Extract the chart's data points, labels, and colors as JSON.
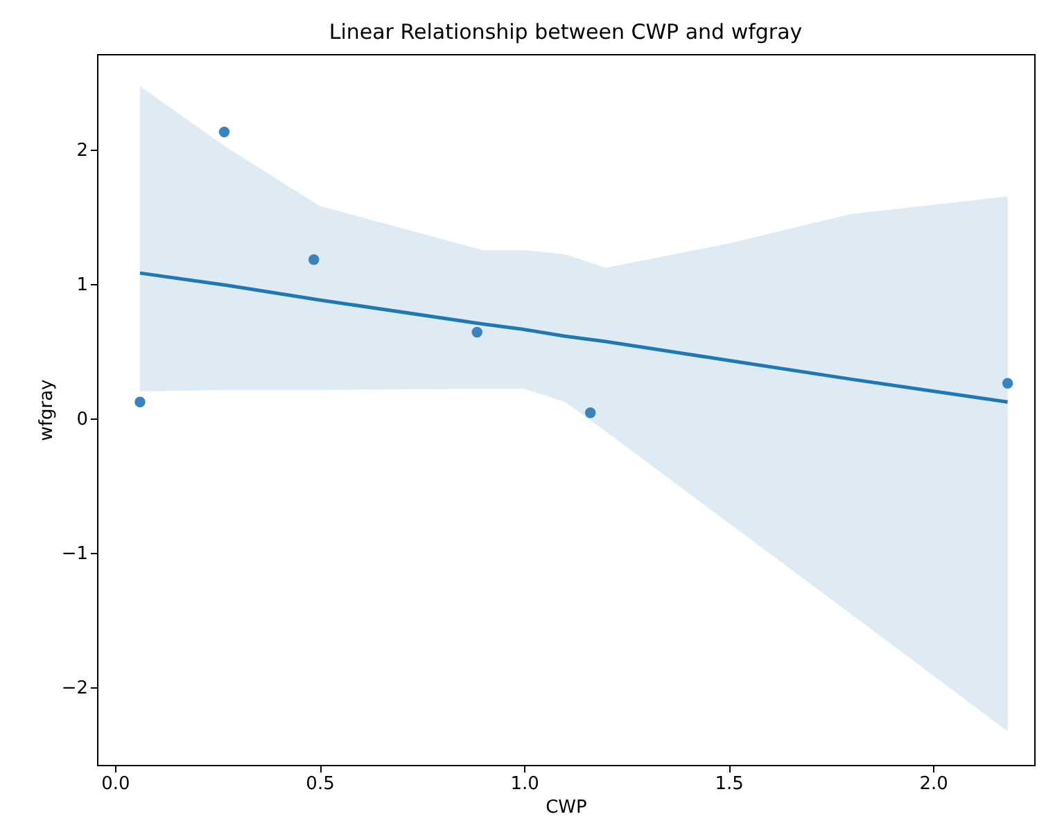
{
  "chart_data": {
    "type": "scatter",
    "title": "Linear Relationship between CWP and wfgray",
    "xlabel": "CWP",
    "ylabel": "wfgray",
    "xlim": [
      -0.044,
      2.247
    ],
    "ylim": [
      -2.58,
      2.71
    ],
    "xticks": [
      {
        "value": 0,
        "label": "0.0"
      },
      {
        "value": 0.5,
        "label": "0.5"
      },
      {
        "value": 1,
        "label": "1.0"
      },
      {
        "value": 1.5,
        "label": "1.5"
      },
      {
        "value": 2,
        "label": "2.0"
      }
    ],
    "yticks": [
      {
        "value": -2,
        "label": "−2"
      },
      {
        "value": -1,
        "label": "−1"
      },
      0,
      1,
      2
    ],
    "grid": false,
    "marker": "circle",
    "series": [
      {
        "color": "#3b83bd",
        "x": [
          0.061,
          0.267,
          0.486,
          0.885,
          1.162,
          2.182
        ],
        "values": [
          0.12,
          2.13,
          1.18,
          0.64,
          0.04,
          0.26
        ]
      },
      {
        "type": "line",
        "color": "#1f77b4",
        "line_style": "solid",
        "marker": "none",
        "x": [
          0.061,
          0.27,
          0.5,
          0.9,
          1.0,
          1.1,
          1.2,
          1.5,
          1.8,
          2.182
        ],
        "values": [
          1.08,
          0.99,
          0.88,
          0.7,
          0.66,
          0.61,
          0.57,
          0.43,
          0.29,
          0.12
        ],
        "upper": [
          2.47,
          2.02,
          1.58,
          1.25,
          1.25,
          1.22,
          1.12,
          1.3,
          1.52,
          1.65
        ],
        "lower": [
          0.2,
          0.21,
          0.21,
          0.22,
          0.22,
          0.12,
          -0.1,
          -0.78,
          -1.46,
          -2.33
        ]
      }
    ]
  }
}
